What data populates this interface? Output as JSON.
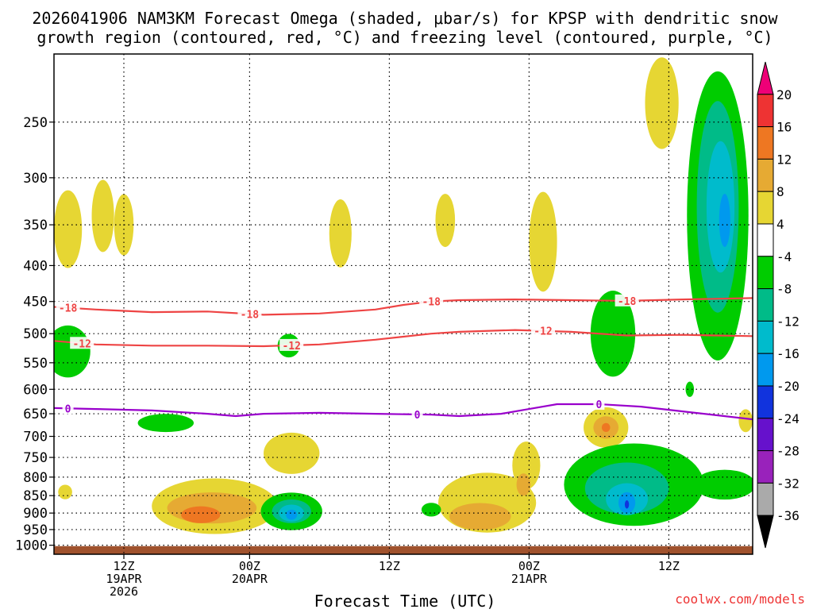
{
  "chart_data": {
    "type": "heatmap",
    "title_line1": "2026041906 NAM3KM Forecast Omega (shaded, μbar/s) for KPSP with dendritic snow",
    "title_line2": "growth region (contoured, red, °C) and freezing level (contoured, purple, °C)",
    "xlabel": "Forecast Time (UTC)",
    "credit": "coolwx.com/models",
    "x_range_hours": [
      1,
      51
    ],
    "y_axis": {
      "scale": "log-pressure",
      "range_hpa": [
        1030,
        200
      ],
      "ticks": [
        250,
        300,
        350,
        400,
        450,
        500,
        550,
        600,
        650,
        700,
        750,
        800,
        850,
        900,
        950,
        1000
      ]
    },
    "x_ticks": [
      {
        "hour": 6,
        "line1": "12Z",
        "line2": "19APR",
        "line3": "2026"
      },
      {
        "hour": 15,
        "line1": "00Z",
        "line2": "20APR",
        "line3": ""
      },
      {
        "hour": 25,
        "line1": "12Z",
        "line2": "",
        "line3": ""
      },
      {
        "hour": 35,
        "line1": "00Z",
        "line2": "21APR",
        "line3": ""
      },
      {
        "hour": 45,
        "line1": "12Z",
        "line2": "",
        "line3": ""
      }
    ],
    "colorbar": {
      "labels": [
        "20",
        "16",
        "12",
        "8",
        "4",
        "-4",
        "-8",
        "-12",
        "-16",
        "-20",
        "-24",
        "-28",
        "-32",
        "-36"
      ],
      "colors": [
        "#ee0077",
        "#ee3333",
        "#ee7722",
        "#e6aa33",
        "#e6d633",
        "#ffffff",
        "#00cc00",
        "#00bb88",
        "#00bbcc",
        "#0099ee",
        "#1133dd",
        "#6611cc",
        "#9922bb",
        "#aaaaaa",
        "#000000"
      ],
      "range": [
        -36,
        20
      ]
    },
    "omega_regions": [
      {
        "level": "+4",
        "color": "#e6d633",
        "hour": 2.0,
        "p_hpa": 355,
        "rx_h": 1.0,
        "ry_hpa": 45
      },
      {
        "level": "+4",
        "color": "#e6d633",
        "hour": 4.5,
        "p_hpa": 340,
        "rx_h": 0.8,
        "ry_hpa": 40
      },
      {
        "level": "+4",
        "color": "#e6d633",
        "hour": 6.0,
        "p_hpa": 350,
        "rx_h": 0.7,
        "ry_hpa": 35
      },
      {
        "level": "+4",
        "color": "#e6d633",
        "hour": 21.5,
        "p_hpa": 360,
        "rx_h": 0.8,
        "ry_hpa": 40
      },
      {
        "level": "+4",
        "color": "#e6d633",
        "hour": 29.0,
        "p_hpa": 345,
        "rx_h": 0.7,
        "ry_hpa": 30
      },
      {
        "level": "+4",
        "color": "#e6d633",
        "hour": 36.0,
        "p_hpa": 370,
        "rx_h": 1.0,
        "ry_hpa": 60
      },
      {
        "level": "+4",
        "color": "#e6d633",
        "hour": 44.5,
        "p_hpa": 235,
        "rx_h": 1.2,
        "ry_hpa": 35
      },
      {
        "level": "+4",
        "color": "#e6d633",
        "hour": 50.5,
        "p_hpa": 665,
        "rx_h": 0.5,
        "ry_hpa": 25
      },
      {
        "level": "+4",
        "color": "#e6d633",
        "hour": 1.8,
        "p_hpa": 840,
        "rx_h": 0.5,
        "ry_hpa": 20
      },
      {
        "level": "+4",
        "color": "#e6d633",
        "hour": 12.5,
        "p_hpa": 880,
        "rx_h": 4.5,
        "ry_hpa": 80
      },
      {
        "level": "+4",
        "color": "#e6d633",
        "hour": 18.0,
        "p_hpa": 740,
        "rx_h": 2.0,
        "ry_hpa": 50
      },
      {
        "level": "+4",
        "color": "#e6d633",
        "hour": 32.0,
        "p_hpa": 870,
        "rx_h": 3.5,
        "ry_hpa": 85
      },
      {
        "level": "+4",
        "color": "#e6d633",
        "hour": 34.8,
        "p_hpa": 770,
        "rx_h": 1.0,
        "ry_hpa": 60
      },
      {
        "level": "+4",
        "color": "#e6d633",
        "hour": 40.5,
        "p_hpa": 680,
        "rx_h": 1.6,
        "ry_hpa": 45
      },
      {
        "level": "+8",
        "color": "#e6aa33",
        "hour": 12.3,
        "p_hpa": 885,
        "rx_h": 3.2,
        "ry_hpa": 45
      },
      {
        "level": "+8",
        "color": "#e6aa33",
        "hour": 31.5,
        "p_hpa": 910,
        "rx_h": 2.2,
        "ry_hpa": 40
      },
      {
        "level": "+8",
        "color": "#e6aa33",
        "hour": 34.6,
        "p_hpa": 820,
        "rx_h": 0.5,
        "ry_hpa": 30
      },
      {
        "level": "+8",
        "color": "#e6aa33",
        "hour": 40.5,
        "p_hpa": 680,
        "rx_h": 0.9,
        "ry_hpa": 25
      },
      {
        "level": "+12",
        "color": "#ee7722",
        "hour": 11.5,
        "p_hpa": 905,
        "rx_h": 1.4,
        "ry_hpa": 25
      },
      {
        "level": "+12",
        "color": "#ee7722",
        "hour": 40.5,
        "p_hpa": 680,
        "rx_h": 0.3,
        "ry_hpa": 10
      },
      {
        "level": "-4",
        "color": "#00cc00",
        "hour": 2.0,
        "p_hpa": 530,
        "rx_h": 1.6,
        "ry_hpa": 45
      },
      {
        "level": "-4",
        "color": "#00cc00",
        "hour": 9.0,
        "p_hpa": 670,
        "rx_h": 2.0,
        "ry_hpa": 20
      },
      {
        "level": "-4",
        "color": "#00cc00",
        "hour": 17.8,
        "p_hpa": 520,
        "rx_h": 0.8,
        "ry_hpa": 20
      },
      {
        "level": "-4",
        "color": "#00cc00",
        "hour": 18.0,
        "p_hpa": 895,
        "rx_h": 2.2,
        "ry_hpa": 55
      },
      {
        "level": "-4",
        "color": "#00cc00",
        "hour": 28.0,
        "p_hpa": 890,
        "rx_h": 0.7,
        "ry_hpa": 20
      },
      {
        "level": "-4",
        "color": "#00cc00",
        "hour": 41.0,
        "p_hpa": 500,
        "rx_h": 1.6,
        "ry_hpa": 70
      },
      {
        "level": "-4",
        "color": "#00cc00",
        "hour": 42.5,
        "p_hpa": 820,
        "rx_h": 5.0,
        "ry_hpa": 110
      },
      {
        "level": "-4",
        "color": "#00cc00",
        "hour": 48.5,
        "p_hpa": 340,
        "rx_h": 2.2,
        "ry_hpa": 150
      },
      {
        "level": "-4",
        "color": "#00cc00",
        "hour": 49.0,
        "p_hpa": 820,
        "rx_h": 2.2,
        "ry_hpa": 40
      },
      {
        "level": "-4",
        "color": "#00cc00",
        "hour": 46.5,
        "p_hpa": 600,
        "rx_h": 0.3,
        "ry_hpa": 15
      },
      {
        "level": "-8",
        "color": "#00bb88",
        "hour": 42.0,
        "p_hpa": 830,
        "rx_h": 3.0,
        "ry_hpa": 70
      },
      {
        "level": "-8",
        "color": "#00bb88",
        "hour": 18.0,
        "p_hpa": 895,
        "rx_h": 1.4,
        "ry_hpa": 35
      },
      {
        "level": "-8",
        "color": "#00bb88",
        "hour": 48.5,
        "p_hpa": 330,
        "rx_h": 1.5,
        "ry_hpa": 110
      },
      {
        "level": "-12",
        "color": "#00bbcc",
        "hour": 42.0,
        "p_hpa": 860,
        "rx_h": 1.5,
        "ry_hpa": 45
      },
      {
        "level": "-12",
        "color": "#00bbcc",
        "hour": 18.0,
        "p_hpa": 900,
        "rx_h": 0.9,
        "ry_hpa": 25
      },
      {
        "level": "-12",
        "color": "#00bbcc",
        "hour": 48.7,
        "p_hpa": 330,
        "rx_h": 1.0,
        "ry_hpa": 70
      },
      {
        "level": "-16",
        "color": "#0099ee",
        "hour": 42.0,
        "p_hpa": 870,
        "rx_h": 0.6,
        "ry_hpa": 30
      },
      {
        "level": "-16",
        "color": "#0099ee",
        "hour": 18.0,
        "p_hpa": 905,
        "rx_h": 0.4,
        "ry_hpa": 15
      },
      {
        "level": "-16",
        "color": "#0099ee",
        "hour": 49.0,
        "p_hpa": 345,
        "rx_h": 0.4,
        "ry_hpa": 30
      },
      {
        "level": "-20",
        "color": "#1133dd",
        "hour": 42.0,
        "p_hpa": 875,
        "rx_h": 0.15,
        "ry_hpa": 12
      }
    ],
    "contours": [
      {
        "name": "dgz -18C",
        "label": "-18",
        "color": "#ee4444",
        "x": [
          1,
          4,
          8,
          12,
          16,
          20,
          24,
          26,
          28,
          30,
          34,
          38,
          42,
          46,
          51
        ],
        "y": [
          458,
          462,
          466,
          465,
          470,
          468,
          462,
          455,
          450,
          448,
          447,
          448,
          449,
          447,
          445
        ],
        "label_hours": [
          2,
          15,
          28,
          42
        ]
      },
      {
        "name": "dgz -12C",
        "label": "-12",
        "color": "#ee4444",
        "x": [
          1,
          4,
          8,
          12,
          16,
          20,
          24,
          26,
          28,
          30,
          34,
          38,
          42,
          46,
          51
        ],
        "y": [
          512,
          518,
          520,
          520,
          521,
          518,
          510,
          505,
          500,
          497,
          494,
          497,
          503,
          502,
          504
        ],
        "label_hours": [
          3,
          18,
          36
        ]
      },
      {
        "name": "freezing level 0C",
        "label": "0",
        "color": "#9900cc",
        "x": [
          1,
          4,
          8,
          12,
          14,
          16,
          20,
          24,
          28,
          30,
          33,
          35,
          37,
          40,
          43,
          46,
          51
        ],
        "y": [
          638,
          640,
          643,
          650,
          655,
          650,
          648,
          650,
          652,
          655,
          650,
          640,
          630,
          630,
          635,
          645,
          662
        ],
        "label_hours": [
          2,
          27,
          40
        ]
      }
    ]
  }
}
